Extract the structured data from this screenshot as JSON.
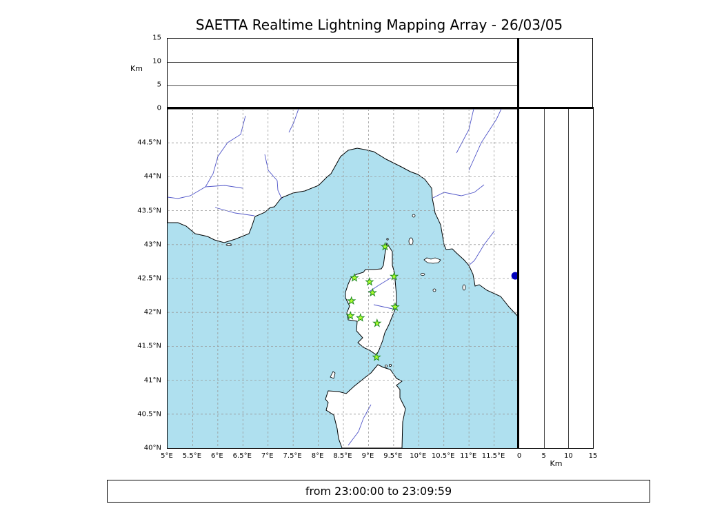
{
  "title": "SAETTA Realtime Lightning Mapping Array - 26/03/05",
  "time_label": "from 23:00:00 to 23:09:59",
  "colors": {
    "sea": "#afe0ef",
    "land": "#ffffff",
    "coast": "#000000",
    "river": "#5055c8",
    "grid": "#999999",
    "station_fill": "#adff2f",
    "station_stroke": "#1f8b1f",
    "marker_blue": "#0000bb"
  },
  "altitude_panel": {
    "ylabel": "Km",
    "ticks": [
      "15",
      "10",
      "5",
      "0"
    ],
    "tick_values": [
      15,
      10,
      5,
      0
    ],
    "gridline_values": [
      5,
      10
    ],
    "range": [
      0,
      15
    ]
  },
  "right_panel": {
    "xlabel": "Km",
    "ticks": [
      "0",
      "5",
      "10",
      "15"
    ],
    "tick_values": [
      0,
      5,
      10,
      15
    ],
    "gridline_values": [
      5,
      10
    ],
    "range": [
      0,
      15
    ]
  },
  "map": {
    "bounds": {
      "lon_min": 5,
      "lon_max": 12,
      "lat_min": 40,
      "lat_max": 45
    },
    "grid_step_deg": 0.5,
    "lon_ticks": [
      {
        "v": 5,
        "label": "5°E"
      },
      {
        "v": 5.5,
        "label": "5.5°E"
      },
      {
        "v": 6,
        "label": "6°E"
      },
      {
        "v": 6.5,
        "label": "6.5°E"
      },
      {
        "v": 7,
        "label": "7°E"
      },
      {
        "v": 7.5,
        "label": "7.5°E"
      },
      {
        "v": 8,
        "label": "8°E"
      },
      {
        "v": 8.5,
        "label": "8.5°E"
      },
      {
        "v": 9,
        "label": "9°E"
      },
      {
        "v": 9.5,
        "label": "9.5°E"
      },
      {
        "v": 10,
        "label": "10°E"
      },
      {
        "v": 10.5,
        "label": "10.5°E"
      },
      {
        "v": 11,
        "label": "11°E"
      },
      {
        "v": 11.5,
        "label": "11.5°E"
      }
    ],
    "lat_ticks": [
      {
        "v": 44.5,
        "label": "44.5°N"
      },
      {
        "v": 44,
        "label": "44°N"
      },
      {
        "v": 43.5,
        "label": "43.5°N"
      },
      {
        "v": 43,
        "label": "43°N"
      },
      {
        "v": 42.5,
        "label": "42.5°N"
      },
      {
        "v": 42,
        "label": "42°N"
      },
      {
        "v": 41.5,
        "label": "41.5°N"
      },
      {
        "v": 41,
        "label": "41°N"
      },
      {
        "v": 40.5,
        "label": "40.5°N"
      },
      {
        "v": 40,
        "label": "40°N"
      }
    ]
  },
  "stations": {
    "lma": [
      {
        "lon": 9.33,
        "lat": 42.97
      },
      {
        "lon": 8.72,
        "lat": 42.51
      },
      {
        "lon": 9.02,
        "lat": 42.45
      },
      {
        "lon": 9.51,
        "lat": 42.53
      },
      {
        "lon": 9.08,
        "lat": 42.29
      },
      {
        "lon": 8.66,
        "lat": 42.17
      },
      {
        "lon": 9.53,
        "lat": 42.08
      },
      {
        "lon": 8.64,
        "lat": 41.95
      },
      {
        "lon": 8.84,
        "lat": 41.92
      },
      {
        "lon": 9.17,
        "lat": 41.84
      },
      {
        "lon": 9.16,
        "lat": 41.34
      }
    ],
    "other": [
      {
        "lon": 11.92,
        "lat": 42.54
      }
    ]
  },
  "chart_data": {
    "type": "map",
    "title": "SAETTA Realtime Lightning Mapping Array - 26/03/05",
    "time_window": "from 23:00:00 to 23:09:59",
    "panels": [
      {
        "name": "altitude-vs-longitude",
        "ylabel": "Km",
        "ylim": [
          0,
          15
        ],
        "gridlines": [
          5,
          10
        ],
        "points": []
      },
      {
        "name": "plan-view-map",
        "lon_range": [
          5,
          12
        ],
        "lat_range": [
          40,
          45
        ],
        "grid_step": 0.5,
        "points": []
      },
      {
        "name": "altitude-vs-latitude",
        "xlabel": "Km",
        "xlim": [
          0,
          15
        ],
        "gridlines": [
          5,
          10
        ],
        "points": []
      }
    ],
    "lma_stations_lonlat": [
      [
        9.33,
        42.97
      ],
      [
        8.72,
        42.51
      ],
      [
        9.02,
        42.45
      ],
      [
        9.51,
        42.53
      ],
      [
        9.08,
        42.29
      ],
      [
        8.66,
        42.17
      ],
      [
        9.53,
        42.08
      ],
      [
        8.64,
        41.95
      ],
      [
        8.84,
        41.92
      ],
      [
        9.17,
        41.84
      ],
      [
        9.16,
        41.34
      ]
    ],
    "other_marker_lonlat": [
      [
        11.92,
        42.54
      ]
    ],
    "lightning_sources": []
  }
}
